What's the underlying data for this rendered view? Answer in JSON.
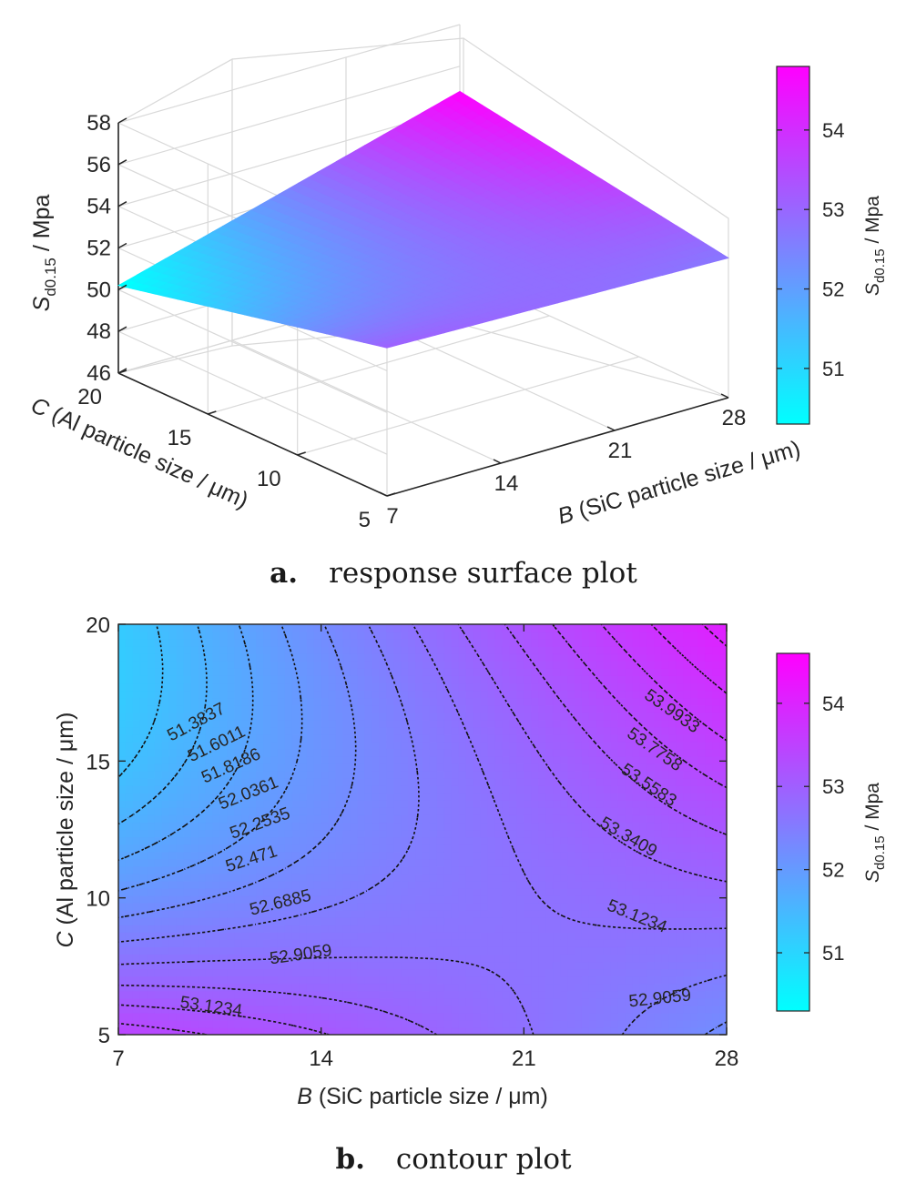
{
  "chart_data": [
    {
      "type": "surface",
      "x_axis": {
        "label_var": "B",
        "label_rest": " (SiC particle size / μm)",
        "range": [
          7,
          28
        ],
        "ticks": [
          "7",
          "14",
          "21",
          "28"
        ]
      },
      "y_axis": {
        "label_var": "C",
        "label_rest": " (Al particle size / μm)",
        "range": [
          5,
          20
        ],
        "ticks": [
          "5",
          "10",
          "15",
          "20"
        ]
      },
      "z_axis": {
        "label_main": "S",
        "label_sub": "d0.15",
        "label_unit": " / Mpa",
        "range": [
          46,
          58
        ],
        "ticks": [
          "46",
          "48",
          "50",
          "52",
          "54",
          "56",
          "58"
        ]
      },
      "surface_corners": [
        {
          "B": 7,
          "C": 20,
          "value": 50.2
        },
        {
          "B": 7,
          "C": 5,
          "value": 53.1
        },
        {
          "B": 28,
          "C": 5,
          "value": 52.7
        },
        {
          "B": 28,
          "C": 20,
          "value": 54.8
        }
      ],
      "colorbar": {
        "range": [
          50.3,
          54.8
        ],
        "ticks": [
          "51",
          "52",
          "53",
          "54"
        ],
        "label_main": "S",
        "label_sub": "d0.15",
        "label_unit": " / Mpa",
        "color_low": "#00FFFF",
        "color_high": "#FF00FF"
      },
      "grid": true
    },
    {
      "type": "contour",
      "x_axis": {
        "label_var": "B",
        "label_rest": " (SiC particle size / μm)",
        "range": [
          7,
          28
        ],
        "ticks": [
          "7",
          "14",
          "21",
          "28"
        ]
      },
      "y_axis": {
        "label_var": "C",
        "label_rest": " (Al particle size / μm)",
        "range": [
          5,
          20
        ],
        "ticks": [
          "5",
          "10",
          "15",
          "20"
        ]
      },
      "contour_levels": [
        "51.3837",
        "51.6011",
        "51.8186",
        "52.0361",
        "52.2535",
        "52.471",
        "52.6885",
        "52.9059",
        "53.1234",
        "53.3409",
        "53.5583",
        "53.7758",
        "53.9933"
      ],
      "contour_labels": [
        {
          "text": "51.3837",
          "B": 9.7,
          "C": 16.4,
          "angle": -28
        },
        {
          "text": "51.6011",
          "B": 10.4,
          "C": 15.6,
          "angle": -26
        },
        {
          "text": "51.8186",
          "B": 10.9,
          "C": 14.8,
          "angle": -24
        },
        {
          "text": "52.0361",
          "B": 11.5,
          "C": 13.8,
          "angle": -22
        },
        {
          "text": "52.2535",
          "B": 11.9,
          "C": 12.7,
          "angle": -20
        },
        {
          "text": "52.471",
          "B": 11.6,
          "C": 11.4,
          "angle": -18
        },
        {
          "text": "52.6885",
          "B": 12.6,
          "C": 9.8,
          "angle": -14
        },
        {
          "text": "52.9059",
          "B": 13.3,
          "C": 7.9,
          "angle": -8
        },
        {
          "text": "53.1234",
          "B": 10.2,
          "C": 6.0,
          "angle": 8
        },
        {
          "text": "52.9059",
          "B": 25.7,
          "C": 6.3,
          "angle": -6
        },
        {
          "text": "53.1234",
          "B": 24.9,
          "C": 9.3,
          "angle": 22
        },
        {
          "text": "53.3409",
          "B": 24.6,
          "C": 12.2,
          "angle": 30
        },
        {
          "text": "53.5583",
          "B": 25.3,
          "C": 14.1,
          "angle": 34
        },
        {
          "text": "53.7758",
          "B": 25.5,
          "C": 15.4,
          "angle": 35
        },
        {
          "text": "53.9933",
          "B": 26.1,
          "C": 16.8,
          "angle": 35
        }
      ],
      "colorbar": {
        "range": [
          50.3,
          54.6
        ],
        "ticks": [
          "51",
          "52",
          "53",
          "54"
        ],
        "label_main": "S",
        "label_sub": "d0.15",
        "label_unit": " / Mpa",
        "color_low": "#00FFFF",
        "color_high": "#FF00FF"
      }
    }
  ],
  "captions": {
    "a": {
      "letter": "a.",
      "text": "response surface plot"
    },
    "b": {
      "letter": "b.",
      "text": "contour plot"
    }
  }
}
